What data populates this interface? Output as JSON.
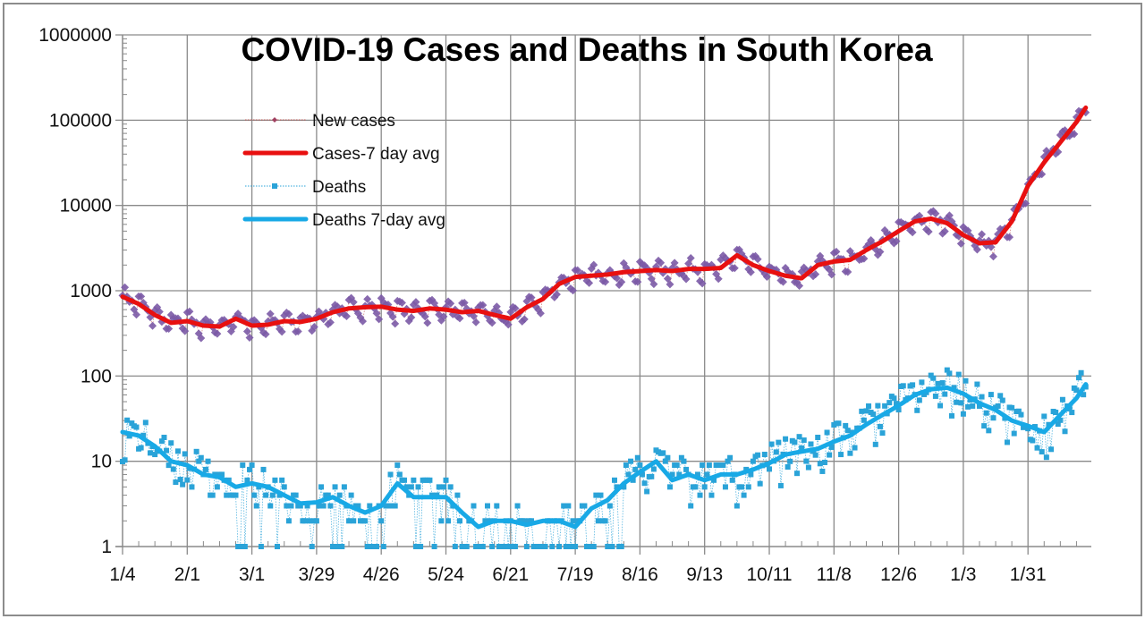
{
  "chart_data": {
    "type": "line",
    "title": "COVID-19 Cases and Deaths in South Korea",
    "xlabel": "",
    "ylabel": "",
    "yscale": "log",
    "ylim": [
      1,
      1000000
    ],
    "grid": true,
    "legend_position": "upper-left-inside",
    "yticks": [
      "1",
      "10",
      "100",
      "1000",
      "10000",
      "100000",
      "1000000"
    ],
    "yticks_values": [
      1,
      10,
      100,
      1000,
      10000,
      100000,
      1000000
    ],
    "xticks": [
      "1/4",
      "2/1",
      "3/1",
      "3/29",
      "4/26",
      "5/24",
      "6/21",
      "7/19",
      "8/16",
      "9/13",
      "10/11",
      "11/8",
      "12/6",
      "1/3",
      "1/31"
    ],
    "xticks_day_offsets": [
      0,
      28,
      56,
      84,
      112,
      140,
      168,
      196,
      224,
      252,
      280,
      308,
      336,
      364,
      392
    ],
    "x_unit": "days since 1/4",
    "xlim": [
      0,
      420
    ],
    "legend": [
      "New cases",
      "Cases-7 day avg",
      "Deaths",
      "Deaths 7-day avg"
    ],
    "colors": {
      "new_cases": "#7b5aa6",
      "new_cases_line": "#c0504d",
      "cases_avg": "#e81010",
      "deaths": "#2aa3d8",
      "deaths_avg": "#18a9e6"
    },
    "series": [
      {
        "name": "Cases-7 day avg",
        "style": "thick-line",
        "points": [
          [
            0,
            850
          ],
          [
            7,
            700
          ],
          [
            14,
            520
          ],
          [
            21,
            420
          ],
          [
            28,
            440
          ],
          [
            35,
            390
          ],
          [
            42,
            380
          ],
          [
            49,
            470
          ],
          [
            56,
            390
          ],
          [
            63,
            400
          ],
          [
            70,
            440
          ],
          [
            77,
            430
          ],
          [
            84,
            470
          ],
          [
            91,
            560
          ],
          [
            98,
            620
          ],
          [
            105,
            640
          ],
          [
            112,
            650
          ],
          [
            119,
            600
          ],
          [
            126,
            580
          ],
          [
            133,
            620
          ],
          [
            140,
            600
          ],
          [
            147,
            560
          ],
          [
            154,
            580
          ],
          [
            161,
            520
          ],
          [
            168,
            470
          ],
          [
            175,
            640
          ],
          [
            182,
            800
          ],
          [
            189,
            1200
          ],
          [
            196,
            1450
          ],
          [
            203,
            1500
          ],
          [
            210,
            1550
          ],
          [
            217,
            1650
          ],
          [
            224,
            1700
          ],
          [
            231,
            1750
          ],
          [
            238,
            1700
          ],
          [
            245,
            1800
          ],
          [
            252,
            1800
          ],
          [
            259,
            1850
          ],
          [
            266,
            2600
          ],
          [
            273,
            2000
          ],
          [
            280,
            1700
          ],
          [
            287,
            1500
          ],
          [
            294,
            1400
          ],
          [
            301,
            2000
          ],
          [
            308,
            2200
          ],
          [
            315,
            2300
          ],
          [
            322,
            3000
          ],
          [
            329,
            3800
          ],
          [
            336,
            5000
          ],
          [
            343,
            6500
          ],
          [
            350,
            7000
          ],
          [
            357,
            6200
          ],
          [
            364,
            4500
          ],
          [
            371,
            3600
          ],
          [
            378,
            3700
          ],
          [
            385,
            6500
          ],
          [
            392,
            17000
          ],
          [
            399,
            32000
          ],
          [
            406,
            55000
          ],
          [
            413,
            95000
          ],
          [
            417,
            140000
          ]
        ]
      },
      {
        "name": "New cases",
        "style": "diamond-markers",
        "note": "daily values scatter around 7-day avg by roughly ±25%",
        "points": [
          [
            0,
            750
          ],
          [
            6,
            560
          ],
          [
            12,
            430
          ],
          [
            17,
            360
          ],
          [
            22,
            540
          ],
          [
            27,
            330
          ],
          [
            33,
            300
          ],
          [
            38,
            470
          ],
          [
            42,
            340
          ],
          [
            46,
            600
          ],
          [
            50,
            350
          ],
          [
            56,
            370
          ],
          [
            60,
            430
          ],
          [
            66,
            380
          ],
          [
            72,
            470
          ],
          [
            78,
            350
          ],
          [
            84,
            420
          ],
          [
            90,
            560
          ],
          [
            95,
            700
          ],
          [
            101,
            560
          ],
          [
            106,
            720
          ],
          [
            111,
            750
          ],
          [
            116,
            540
          ],
          [
            122,
            580
          ],
          [
            128,
            520
          ],
          [
            134,
            680
          ],
          [
            139,
            480
          ],
          [
            145,
            640
          ],
          [
            150,
            470
          ],
          [
            156,
            560
          ],
          [
            162,
            440
          ],
          [
            167,
            380
          ],
          [
            173,
            620
          ],
          [
            178,
            790
          ],
          [
            186,
            1300
          ],
          [
            192,
            1600
          ],
          [
            198,
            1500
          ],
          [
            205,
            1700
          ],
          [
            210,
            1380
          ],
          [
            216,
            1900
          ],
          [
            222,
            1600
          ],
          [
            229,
            1700
          ],
          [
            235,
            2000
          ],
          [
            240,
            1600
          ],
          [
            246,
            1750
          ],
          [
            253,
            1800
          ],
          [
            262,
            3000
          ],
          [
            268,
            1900
          ],
          [
            273,
            1700
          ],
          [
            279,
            1500
          ],
          [
            285,
            1200
          ],
          [
            290,
            1500
          ],
          [
            297,
            2000
          ],
          [
            303,
            1700
          ],
          [
            310,
            2300
          ],
          [
            318,
            3200
          ],
          [
            324,
            3400
          ],
          [
            330,
            4200
          ],
          [
            337,
            7000
          ],
          [
            343,
            7200
          ],
          [
            348,
            7200
          ],
          [
            354,
            6700
          ],
          [
            358,
            4800
          ],
          [
            363,
            3900
          ],
          [
            368,
            3100
          ],
          [
            372,
            4200
          ],
          [
            376,
            4000
          ],
          [
            382,
            5500
          ],
          [
            387,
            7800
          ],
          [
            391,
            14000
          ],
          [
            395,
            18000
          ],
          [
            400,
            30000
          ],
          [
            404,
            38000
          ],
          [
            410,
            55000
          ],
          [
            415,
            170000
          ]
        ]
      },
      {
        "name": "Deaths 7-day avg",
        "style": "thick-line",
        "points": [
          [
            0,
            22
          ],
          [
            7,
            20
          ],
          [
            14,
            15
          ],
          [
            21,
            10
          ],
          [
            28,
            9
          ],
          [
            35,
            7
          ],
          [
            42,
            6.5
          ],
          [
            49,
            5
          ],
          [
            56,
            5.5
          ],
          [
            63,
            5
          ],
          [
            70,
            4
          ],
          [
            77,
            3.2
          ],
          [
            84,
            3.3
          ],
          [
            91,
            3.8
          ],
          [
            98,
            3
          ],
          [
            105,
            2.5
          ],
          [
            112,
            3
          ],
          [
            119,
            5.5
          ],
          [
            126,
            3.8
          ],
          [
            133,
            3.8
          ],
          [
            140,
            3.8
          ],
          [
            147,
            2.5
          ],
          [
            154,
            1.7
          ],
          [
            161,
            2
          ],
          [
            168,
            2
          ],
          [
            175,
            1.8
          ],
          [
            182,
            2
          ],
          [
            189,
            2
          ],
          [
            196,
            1.7
          ],
          [
            203,
            2.8
          ],
          [
            210,
            3.5
          ],
          [
            217,
            5.5
          ],
          [
            224,
            7.5
          ],
          [
            231,
            10
          ],
          [
            238,
            6
          ],
          [
            245,
            7
          ],
          [
            252,
            6
          ],
          [
            259,
            7
          ],
          [
            266,
            7
          ],
          [
            273,
            8
          ],
          [
            280,
            9.5
          ],
          [
            287,
            12
          ],
          [
            294,
            13
          ],
          [
            301,
            14
          ],
          [
            308,
            17
          ],
          [
            315,
            20
          ],
          [
            322,
            27
          ],
          [
            329,
            35
          ],
          [
            336,
            45
          ],
          [
            343,
            60
          ],
          [
            350,
            70
          ],
          [
            357,
            73
          ],
          [
            364,
            62
          ],
          [
            371,
            48
          ],
          [
            378,
            40
          ],
          [
            385,
            30
          ],
          [
            392,
            26
          ],
          [
            399,
            22
          ],
          [
            406,
            35
          ],
          [
            413,
            55
          ],
          [
            417,
            80
          ]
        ]
      },
      {
        "name": "Deaths",
        "style": "square-markers-dotted",
        "note": "daily values range widely; many days at 1 or 2 in mid-year",
        "points": [
          [
            0,
            26
          ],
          [
            3,
            35
          ],
          [
            8,
            10
          ],
          [
            14,
            20
          ],
          [
            21,
            13
          ],
          [
            28,
            10
          ],
          [
            35,
            5
          ],
          [
            42,
            3
          ],
          [
            49,
            1
          ],
          [
            56,
            1
          ],
          [
            63,
            5
          ],
          [
            70,
            1
          ],
          [
            77,
            4
          ],
          [
            84,
            1
          ],
          [
            91,
            6
          ],
          [
            98,
            1
          ],
          [
            105,
            2
          ],
          [
            112,
            9
          ],
          [
            119,
            7
          ],
          [
            126,
            1
          ],
          [
            133,
            5
          ],
          [
            140,
            3
          ],
          [
            147,
            2
          ],
          [
            154,
            1
          ],
          [
            161,
            1
          ],
          [
            168,
            4
          ],
          [
            175,
            1
          ],
          [
            182,
            1
          ],
          [
            189,
            4
          ],
          [
            196,
            1
          ],
          [
            203,
            5
          ],
          [
            210,
            9
          ],
          [
            217,
            1
          ],
          [
            224,
            15
          ],
          [
            231,
            20
          ],
          [
            238,
            2
          ],
          [
            245,
            1
          ],
          [
            252,
            1
          ],
          [
            259,
            8
          ],
          [
            266,
            4
          ],
          [
            273,
            3
          ],
          [
            280,
            10
          ],
          [
            287,
            20
          ],
          [
            294,
            12
          ],
          [
            301,
            20
          ],
          [
            308,
            18
          ],
          [
            315,
            30
          ],
          [
            322,
            40
          ],
          [
            329,
            40
          ],
          [
            336,
            55
          ],
          [
            343,
            90
          ],
          [
            350,
            110
          ],
          [
            357,
            100
          ],
          [
            364,
            40
          ],
          [
            371,
            30
          ],
          [
            378,
            20
          ],
          [
            385,
            11
          ],
          [
            392,
            15
          ],
          [
            399,
            18
          ],
          [
            406,
            60
          ],
          [
            413,
            100
          ],
          [
            417,
            110
          ]
        ]
      }
    ]
  }
}
